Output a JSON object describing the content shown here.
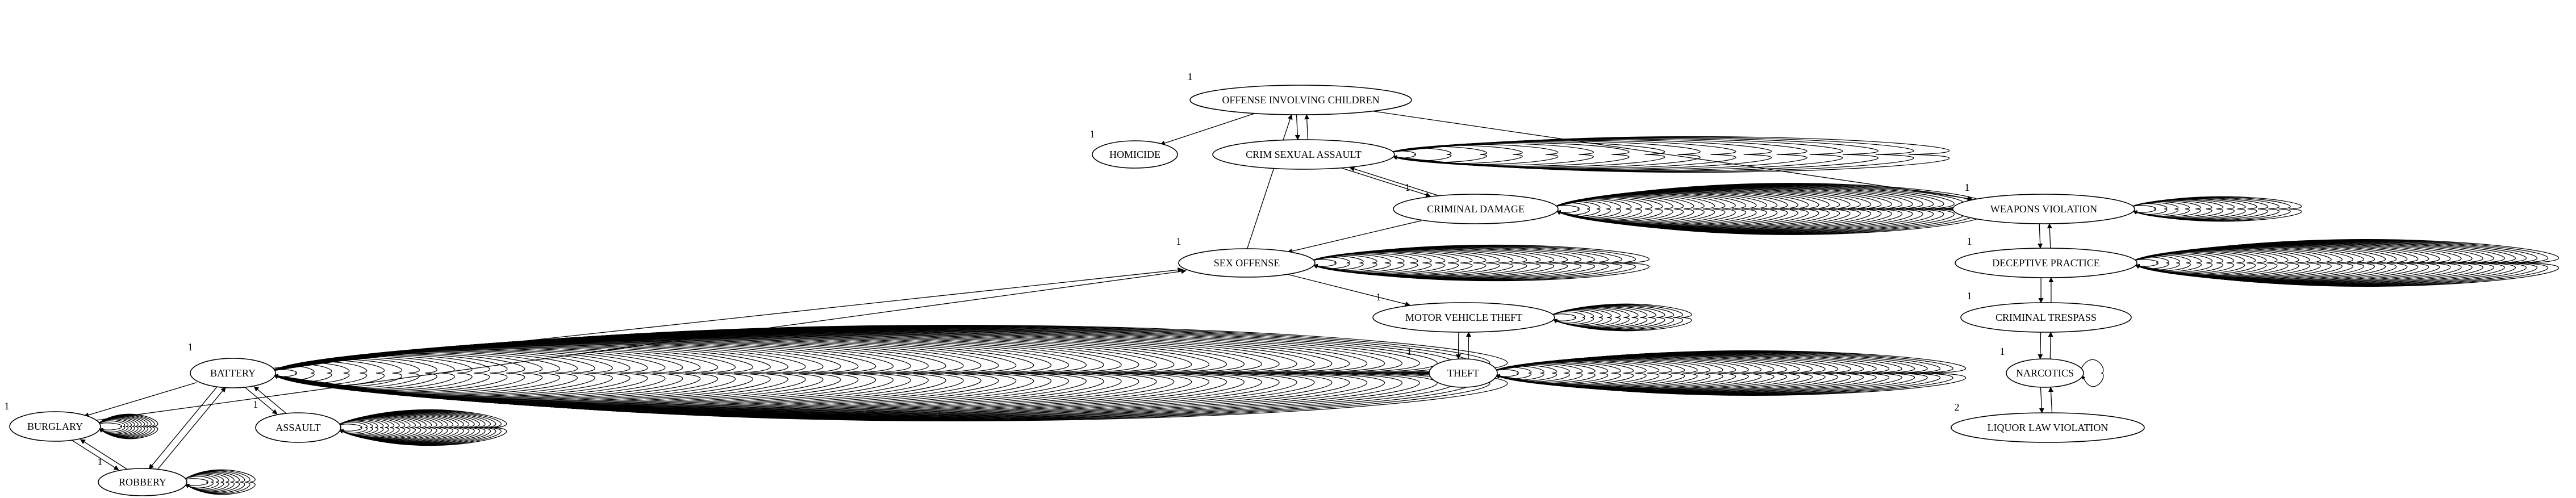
{
  "graph": {
    "nodes": [
      {
        "id": "offense_involving_children",
        "label": "OFFENSE INVOLVING CHILDREN",
        "badge": "1",
        "loops": 0
      },
      {
        "id": "homicide",
        "label": "HOMICIDE",
        "badge": "1",
        "loops": 0
      },
      {
        "id": "crim_sexual_assault",
        "label": "CRIM SEXUAL ASSAULT",
        "badge": "",
        "loops": 16
      },
      {
        "id": "criminal_damage",
        "label": "CRIMINAL DAMAGE",
        "badge": "1",
        "loops": 40
      },
      {
        "id": "sex_offense",
        "label": "SEX OFFENSE",
        "badge": "1",
        "loops": 24
      },
      {
        "id": "motor_vehicle_theft",
        "label": "MOTOR VEHICLE THEFT",
        "badge": "1",
        "loops": 14
      },
      {
        "id": "theft",
        "label": "THEFT",
        "badge": "1",
        "loops": 36
      },
      {
        "id": "battery",
        "label": "BATTERY",
        "badge": "1",
        "loops": 70
      },
      {
        "id": "assault",
        "label": "ASSAULT",
        "badge": "1",
        "loops": 28
      },
      {
        "id": "burglary",
        "label": "BURGLARY",
        "badge": "1",
        "loops": 12
      },
      {
        "id": "robbery",
        "label": "ROBBERY",
        "badge": "1",
        "loops": 10
      },
      {
        "id": "weapons_violation",
        "label": "WEAPONS VIOLATION",
        "badge": "1",
        "loops": 14
      },
      {
        "id": "deceptive_practice",
        "label": "DECEPTIVE PRACTICE",
        "badge": "1",
        "loops": 38
      },
      {
        "id": "criminal_trespass",
        "label": "CRIMINAL TRESPASS",
        "badge": "1",
        "loops": 0
      },
      {
        "id": "narcotics",
        "label": "NARCOTICS",
        "badge": "1",
        "loops": 1
      },
      {
        "id": "liquor_law_violation",
        "label": "LIQUOR LAW VIOLATION",
        "badge": "2",
        "loops": 0
      }
    ],
    "edges": [
      {
        "from": "offense_involving_children",
        "to": "homicide"
      },
      {
        "from": "offense_involving_children",
        "to": "crim_sexual_assault"
      },
      {
        "from": "crim_sexual_assault",
        "to": "offense_involving_children"
      },
      {
        "from": "offense_involving_children",
        "to": "weapons_violation"
      },
      {
        "from": "crim_sexual_assault",
        "to": "criminal_damage"
      },
      {
        "from": "criminal_damage",
        "to": "crim_sexual_assault"
      },
      {
        "from": "criminal_damage",
        "to": "sex_offense"
      },
      {
        "from": "sex_offense",
        "to": "offense_involving_children"
      },
      {
        "from": "sex_offense",
        "to": "motor_vehicle_theft"
      },
      {
        "from": "motor_vehicle_theft",
        "to": "theft"
      },
      {
        "from": "theft",
        "to": "motor_vehicle_theft"
      },
      {
        "from": "burglary",
        "to": "sex_offense"
      },
      {
        "from": "battery",
        "to": "sex_offense"
      },
      {
        "from": "battery",
        "to": "burglary"
      },
      {
        "from": "battery",
        "to": "assault"
      },
      {
        "from": "assault",
        "to": "battery"
      },
      {
        "from": "battery",
        "to": "robbery"
      },
      {
        "from": "robbery",
        "to": "battery"
      },
      {
        "from": "burglary",
        "to": "robbery"
      },
      {
        "from": "robbery",
        "to": "burglary"
      },
      {
        "from": "weapons_violation",
        "to": "deceptive_practice"
      },
      {
        "from": "deceptive_practice",
        "to": "weapons_violation"
      },
      {
        "from": "deceptive_practice",
        "to": "criminal_trespass"
      },
      {
        "from": "criminal_trespass",
        "to": "deceptive_practice"
      },
      {
        "from": "criminal_trespass",
        "to": "narcotics"
      },
      {
        "from": "narcotics",
        "to": "criminal_trespass"
      },
      {
        "from": "narcotics",
        "to": "liquor_law_violation"
      },
      {
        "from": "liquor_law_violation",
        "to": "narcotics"
      }
    ]
  }
}
